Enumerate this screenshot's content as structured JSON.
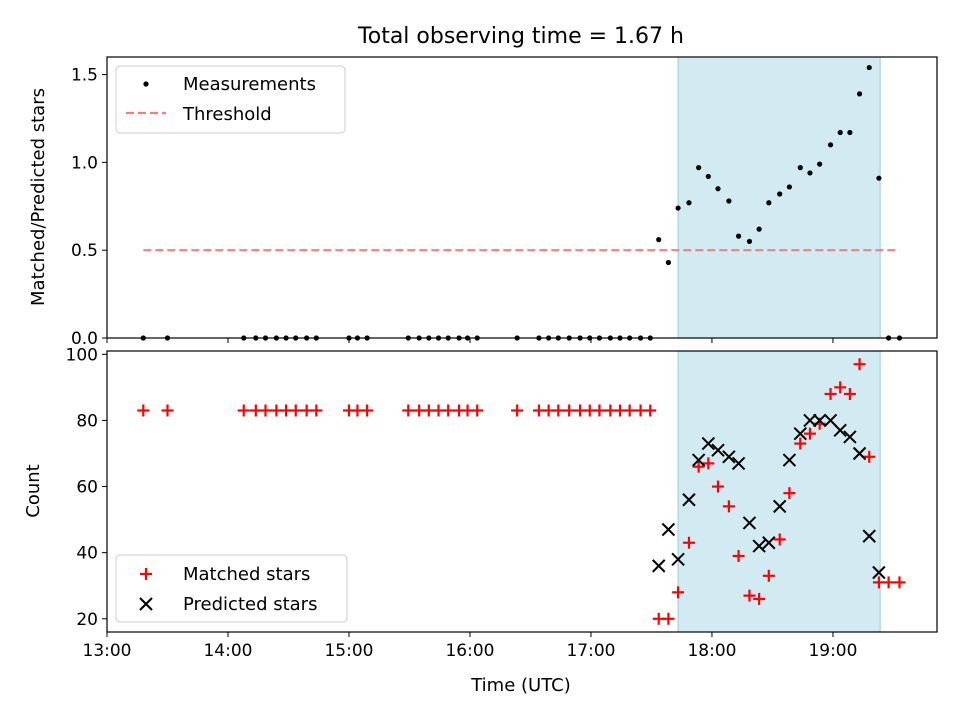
{
  "figure": {
    "title": "Total observing time = 1.67 h"
  },
  "colors": {
    "measurement": "#000000",
    "threshold": "#f08080",
    "matched": "#ff0000",
    "predicted": "#000000",
    "shade": "#add8e6"
  },
  "chart_data": [
    {
      "type": "scatter",
      "title": "Total observing time = 1.67 h",
      "xlabel": "",
      "ylabel": "Matched/Predicted stars",
      "xlim": [
        13.0,
        19.86
      ],
      "ylim": [
        0,
        1.6
      ],
      "x_ticks": [
        "13:00",
        "14:00",
        "15:00",
        "16:00",
        "17:00",
        "18:00",
        "19:00"
      ],
      "y_ticks": [
        "0.0",
        "0.5",
        "1.0",
        "1.5"
      ],
      "legend": "top-left",
      "shaded_interval": {
        "x": [
          17.72,
          19.39
        ]
      },
      "series": [
        {
          "name": "Measurements",
          "marker": "dot",
          "x": [
            13.3,
            13.5,
            14.13,
            14.23,
            14.31,
            14.4,
            14.48,
            14.56,
            14.65,
            14.73,
            15.0,
            15.07,
            15.15,
            15.49,
            15.58,
            15.66,
            15.74,
            15.82,
            15.91,
            15.98,
            16.06,
            16.39,
            16.57,
            16.65,
            16.73,
            16.82,
            16.91,
            16.99,
            17.07,
            17.16,
            17.24,
            17.32,
            17.41,
            17.49,
            17.56,
            17.64,
            17.72,
            17.81,
            17.89,
            17.97,
            18.05,
            18.14,
            18.22,
            18.31,
            18.39,
            18.47,
            18.56,
            18.64,
            18.73,
            18.81,
            18.89,
            18.98,
            19.06,
            19.14,
            19.22,
            19.3,
            19.38,
            19.46,
            19.55
          ],
          "y": [
            0,
            0,
            0,
            0,
            0,
            0,
            0,
            0,
            0,
            0,
            0,
            0,
            0,
            0,
            0,
            0,
            0,
            0,
            0,
            0,
            0,
            0,
            0,
            0,
            0,
            0,
            0,
            0,
            0,
            0,
            0,
            0,
            0,
            0,
            0.56,
            0.43,
            0.74,
            0.77,
            0.97,
            0.92,
            0.85,
            0.78,
            0.58,
            0.55,
            0.62,
            0.77,
            0.82,
            0.86,
            0.97,
            0.94,
            0.99,
            1.1,
            1.17,
            1.17,
            1.39,
            1.54,
            0.91,
            0,
            0
          ]
        },
        {
          "name": "Threshold",
          "type": "line",
          "style": "dashed",
          "x": [
            13.3,
            19.55
          ],
          "y": [
            0.5,
            0.5
          ]
        }
      ]
    },
    {
      "type": "scatter",
      "xlabel": "Time (UTC)",
      "ylabel": "Count",
      "xlim": [
        13.0,
        19.86
      ],
      "ylim": [
        16,
        101
      ],
      "x_ticks": [
        "13:00",
        "14:00",
        "15:00",
        "16:00",
        "17:00",
        "18:00",
        "19:00"
      ],
      "y_ticks": [
        "20",
        "40",
        "60",
        "80",
        "100"
      ],
      "legend": "bottom-left",
      "shaded_interval": {
        "x": [
          17.72,
          19.39
        ]
      },
      "series": [
        {
          "name": "Matched stars",
          "marker": "plus",
          "x": [
            13.3,
            13.5,
            14.13,
            14.23,
            14.31,
            14.4,
            14.48,
            14.56,
            14.65,
            14.73,
            15.0,
            15.07,
            15.15,
            15.49,
            15.58,
            15.66,
            15.74,
            15.82,
            15.91,
            15.98,
            16.06,
            16.39,
            16.57,
            16.65,
            16.73,
            16.82,
            16.91,
            16.99,
            17.07,
            17.16,
            17.24,
            17.32,
            17.41,
            17.49,
            17.56,
            17.64,
            17.72,
            17.81,
            17.89,
            17.97,
            18.05,
            18.14,
            18.22,
            18.31,
            18.39,
            18.47,
            18.56,
            18.64,
            18.73,
            18.81,
            18.89,
            18.98,
            19.06,
            19.14,
            19.22,
            19.3,
            19.38,
            19.46,
            19.55
          ],
          "y": [
            83,
            83,
            83,
            83,
            83,
            83,
            83,
            83,
            83,
            83,
            83,
            83,
            83,
            83,
            83,
            83,
            83,
            83,
            83,
            83,
            83,
            83,
            83,
            83,
            83,
            83,
            83,
            83,
            83,
            83,
            83,
            83,
            83,
            83,
            20,
            20,
            28,
            43,
            66,
            67,
            60,
            54,
            39,
            27,
            26,
            33,
            44,
            58,
            73,
            76,
            79,
            88,
            90,
            88,
            97,
            69,
            31,
            31,
            31
          ]
        },
        {
          "name": "Predicted stars",
          "marker": "x",
          "x": [
            17.56,
            17.64,
            17.72,
            17.81,
            17.89,
            17.97,
            18.05,
            18.14,
            18.22,
            18.31,
            18.39,
            18.47,
            18.56,
            18.64,
            18.73,
            18.81,
            18.89,
            18.98,
            19.06,
            19.14,
            19.22,
            19.3,
            19.38
          ],
          "y": [
            36,
            47,
            38,
            56,
            68,
            73,
            71,
            69,
            67,
            49,
            42,
            43,
            54,
            68,
            76,
            80,
            80,
            80,
            77,
            75,
            70,
            45,
            34
          ]
        }
      ]
    }
  ]
}
